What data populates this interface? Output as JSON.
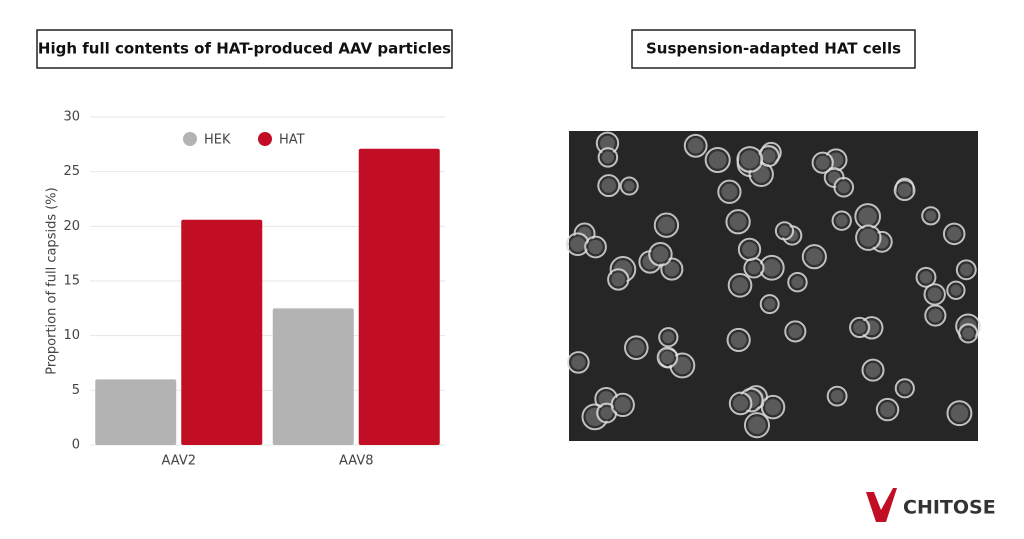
{
  "chart_data": {
    "type": "bar",
    "title": "High full contents of HAT-produced AAV particles",
    "ylabel": "Proportion of full capsids (%)",
    "categories": [
      "AAV2",
      "AAV8"
    ],
    "series": [
      {
        "name": "HEK",
        "color": "#b3b3b3",
        "values": [
          6,
          12.5
        ]
      },
      {
        "name": "HAT",
        "color": "#c20e24",
        "values": [
          20.6,
          27.1
        ]
      }
    ],
    "ylim": [
      0,
      30
    ],
    "yticks": [
      0,
      5,
      10,
      15,
      20,
      25,
      30
    ],
    "grid": true,
    "legend": "top"
  },
  "image_panel": {
    "title": "Suspension-adapted HAT cells"
  },
  "logo": "CHITOSE"
}
